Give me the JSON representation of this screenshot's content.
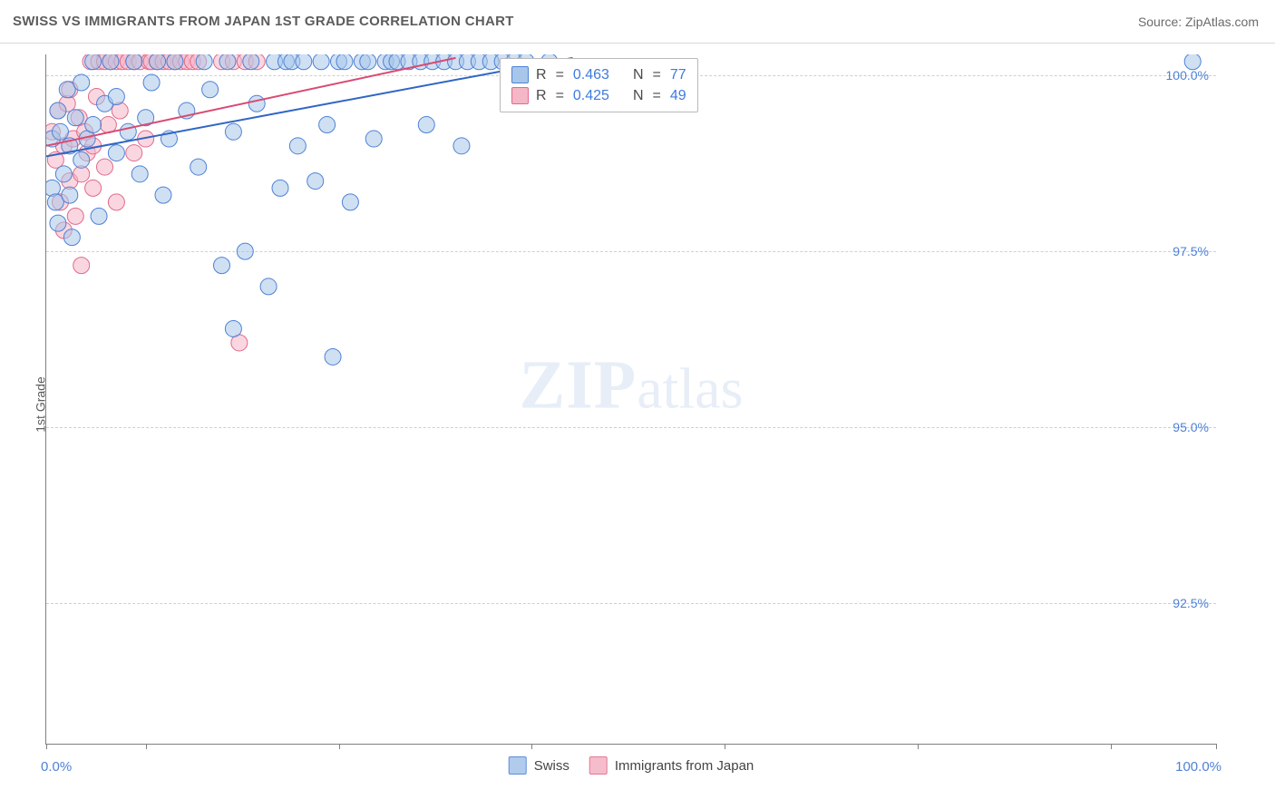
{
  "header": {
    "title": "SWISS VS IMMIGRANTS FROM JAPAN 1ST GRADE CORRELATION CHART",
    "source_prefix": "Source: ",
    "source_name": "ZipAtlas.com"
  },
  "axes": {
    "y_label": "1st Grade",
    "x_min_label": "0.0%",
    "x_max_label": "100.0%",
    "x_min": 0,
    "x_max": 100,
    "y_min": 90.5,
    "y_max": 100.3,
    "y_ticks": [
      {
        "v": 100.0,
        "label": "100.0%"
      },
      {
        "v": 97.5,
        "label": "97.5%"
      },
      {
        "v": 95.0,
        "label": "95.0%"
      },
      {
        "v": 92.5,
        "label": "92.5%"
      }
    ],
    "x_tick_positions": [
      0,
      8.5,
      25,
      41.5,
      58,
      74.5,
      91,
      100
    ]
  },
  "colors": {
    "swiss_fill": "#a8c6ea",
    "swiss_stroke": "#4f81d6",
    "japan_fill": "#f5b6c6",
    "japan_stroke": "#e06a8a",
    "swiss_line": "#2f66c4",
    "japan_line": "#d94a72",
    "grid": "#cfcfcf",
    "axis": "#808080",
    "tick_text": "#4f81d6",
    "title_text": "#5c5c5c",
    "watermark": "rgba(170,195,225,0.28)"
  },
  "marker": {
    "radius": 9,
    "opacity": 0.55,
    "stroke_width": 1
  },
  "legend": {
    "series1": "Swiss",
    "series2": "Immigrants from Japan"
  },
  "stats": {
    "r_label": "R",
    "n_label": "N",
    "eq": "=",
    "swiss_r": "0.463",
    "swiss_n": "77",
    "japan_r": "0.425",
    "japan_n": "49"
  },
  "trend_lines": {
    "swiss": {
      "x1": 0,
      "y1": 98.85,
      "x2": 45,
      "y2": 100.25
    },
    "japan": {
      "x1": 0,
      "y1": 99.0,
      "x2": 35,
      "y2": 100.25
    }
  },
  "watermark": {
    "zip": "ZIP",
    "atlas": "atlas"
  },
  "series": {
    "swiss": [
      {
        "x": 0.5,
        "y": 99.1
      },
      {
        "x": 0.5,
        "y": 98.4
      },
      {
        "x": 0.8,
        "y": 98.2
      },
      {
        "x": 1.0,
        "y": 99.5
      },
      {
        "x": 1.0,
        "y": 97.9
      },
      {
        "x": 1.2,
        "y": 99.2
      },
      {
        "x": 1.5,
        "y": 98.6
      },
      {
        "x": 1.8,
        "y": 99.8
      },
      {
        "x": 2.0,
        "y": 99.0
      },
      {
        "x": 2.0,
        "y": 98.3
      },
      {
        "x": 2.2,
        "y": 97.7
      },
      {
        "x": 2.5,
        "y": 99.4
      },
      {
        "x": 3.0,
        "y": 99.9
      },
      {
        "x": 3.0,
        "y": 98.8
      },
      {
        "x": 3.5,
        "y": 99.1
      },
      {
        "x": 4.0,
        "y": 100.2
      },
      {
        "x": 4.0,
        "y": 99.3
      },
      {
        "x": 4.5,
        "y": 98.0
      },
      {
        "x": 5.0,
        "y": 99.6
      },
      {
        "x": 5.5,
        "y": 100.2
      },
      {
        "x": 6.0,
        "y": 98.9
      },
      {
        "x": 6.0,
        "y": 99.7
      },
      {
        "x": 7.0,
        "y": 99.2
      },
      {
        "x": 7.5,
        "y": 100.2
      },
      {
        "x": 8.0,
        "y": 98.6
      },
      {
        "x": 8.5,
        "y": 99.4
      },
      {
        "x": 9.0,
        "y": 99.9
      },
      {
        "x": 9.5,
        "y": 100.2
      },
      {
        "x": 10.0,
        "y": 98.3
      },
      {
        "x": 10.5,
        "y": 99.1
      },
      {
        "x": 11.0,
        "y": 100.2
      },
      {
        "x": 12.0,
        "y": 99.5
      },
      {
        "x": 13.0,
        "y": 98.7
      },
      {
        "x": 13.5,
        "y": 100.2
      },
      {
        "x": 14.0,
        "y": 99.8
      },
      {
        "x": 15.0,
        "y": 97.3
      },
      {
        "x": 15.5,
        "y": 100.2
      },
      {
        "x": 16.0,
        "y": 99.2
      },
      {
        "x": 16.0,
        "y": 96.4
      },
      {
        "x": 17.0,
        "y": 97.5
      },
      {
        "x": 17.5,
        "y": 100.2
      },
      {
        "x": 18.0,
        "y": 99.6
      },
      {
        "x": 19.0,
        "y": 97.0
      },
      {
        "x": 19.5,
        "y": 100.2
      },
      {
        "x": 20.0,
        "y": 98.4
      },
      {
        "x": 20.5,
        "y": 100.2
      },
      {
        "x": 21.0,
        "y": 100.2
      },
      {
        "x": 21.5,
        "y": 99.0
      },
      {
        "x": 22.0,
        "y": 100.2
      },
      {
        "x": 23.0,
        "y": 98.5
      },
      {
        "x": 23.5,
        "y": 100.2
      },
      {
        "x": 24.0,
        "y": 99.3
      },
      {
        "x": 24.5,
        "y": 96.0
      },
      {
        "x": 25.0,
        "y": 100.2
      },
      {
        "x": 25.5,
        "y": 100.2
      },
      {
        "x": 26.0,
        "y": 98.2
      },
      {
        "x": 27.0,
        "y": 100.2
      },
      {
        "x": 27.5,
        "y": 100.2
      },
      {
        "x": 28.0,
        "y": 99.1
      },
      {
        "x": 29.0,
        "y": 100.2
      },
      {
        "x": 29.5,
        "y": 100.2
      },
      {
        "x": 30.0,
        "y": 100.2
      },
      {
        "x": 31.0,
        "y": 100.2
      },
      {
        "x": 32.0,
        "y": 100.2
      },
      {
        "x": 32.5,
        "y": 99.3
      },
      {
        "x": 33.0,
        "y": 100.2
      },
      {
        "x": 34.0,
        "y": 100.2
      },
      {
        "x": 35.0,
        "y": 100.2
      },
      {
        "x": 35.5,
        "y": 99.0
      },
      {
        "x": 36.0,
        "y": 100.2
      },
      {
        "x": 37.0,
        "y": 100.2
      },
      {
        "x": 38.0,
        "y": 100.2
      },
      {
        "x": 39.0,
        "y": 100.2
      },
      {
        "x": 40.0,
        "y": 100.2
      },
      {
        "x": 41.0,
        "y": 100.2
      },
      {
        "x": 43.0,
        "y": 100.2
      },
      {
        "x": 98.0,
        "y": 100.2
      }
    ],
    "japan": [
      {
        "x": 0.5,
        "y": 99.2
      },
      {
        "x": 0.8,
        "y": 98.8
      },
      {
        "x": 1.0,
        "y": 99.5
      },
      {
        "x": 1.2,
        "y": 98.2
      },
      {
        "x": 1.5,
        "y": 99.0
      },
      {
        "x": 1.5,
        "y": 97.8
      },
      {
        "x": 1.8,
        "y": 99.6
      },
      {
        "x": 2.0,
        "y": 98.5
      },
      {
        "x": 2.0,
        "y": 99.8
      },
      {
        "x": 2.3,
        "y": 99.1
      },
      {
        "x": 2.5,
        "y": 98.0
      },
      {
        "x": 2.8,
        "y": 99.4
      },
      {
        "x": 3.0,
        "y": 98.6
      },
      {
        "x": 3.0,
        "y": 97.3
      },
      {
        "x": 3.3,
        "y": 99.2
      },
      {
        "x": 3.5,
        "y": 98.9
      },
      {
        "x": 3.8,
        "y": 100.2
      },
      {
        "x": 4.0,
        "y": 99.0
      },
      {
        "x": 4.0,
        "y": 98.4
      },
      {
        "x": 4.3,
        "y": 99.7
      },
      {
        "x": 4.5,
        "y": 100.2
      },
      {
        "x": 5.0,
        "y": 98.7
      },
      {
        "x": 5.0,
        "y": 100.2
      },
      {
        "x": 5.3,
        "y": 99.3
      },
      {
        "x": 5.5,
        "y": 100.2
      },
      {
        "x": 6.0,
        "y": 98.2
      },
      {
        "x": 6.0,
        "y": 100.2
      },
      {
        "x": 6.3,
        "y": 99.5
      },
      {
        "x": 6.5,
        "y": 100.2
      },
      {
        "x": 7.0,
        "y": 100.2
      },
      {
        "x": 7.5,
        "y": 98.9
      },
      {
        "x": 7.5,
        "y": 100.2
      },
      {
        "x": 8.0,
        "y": 100.2
      },
      {
        "x": 8.5,
        "y": 99.1
      },
      {
        "x": 8.8,
        "y": 100.2
      },
      {
        "x": 9.0,
        "y": 100.2
      },
      {
        "x": 9.5,
        "y": 100.2
      },
      {
        "x": 10.0,
        "y": 100.2
      },
      {
        "x": 10.5,
        "y": 100.2
      },
      {
        "x": 11.0,
        "y": 100.2
      },
      {
        "x": 11.5,
        "y": 100.2
      },
      {
        "x": 12.0,
        "y": 100.2
      },
      {
        "x": 12.5,
        "y": 100.2
      },
      {
        "x": 13.0,
        "y": 100.2
      },
      {
        "x": 15.0,
        "y": 100.2
      },
      {
        "x": 16.0,
        "y": 100.2
      },
      {
        "x": 16.5,
        "y": 96.2
      },
      {
        "x": 17.0,
        "y": 100.2
      },
      {
        "x": 18.0,
        "y": 100.2
      }
    ]
  }
}
